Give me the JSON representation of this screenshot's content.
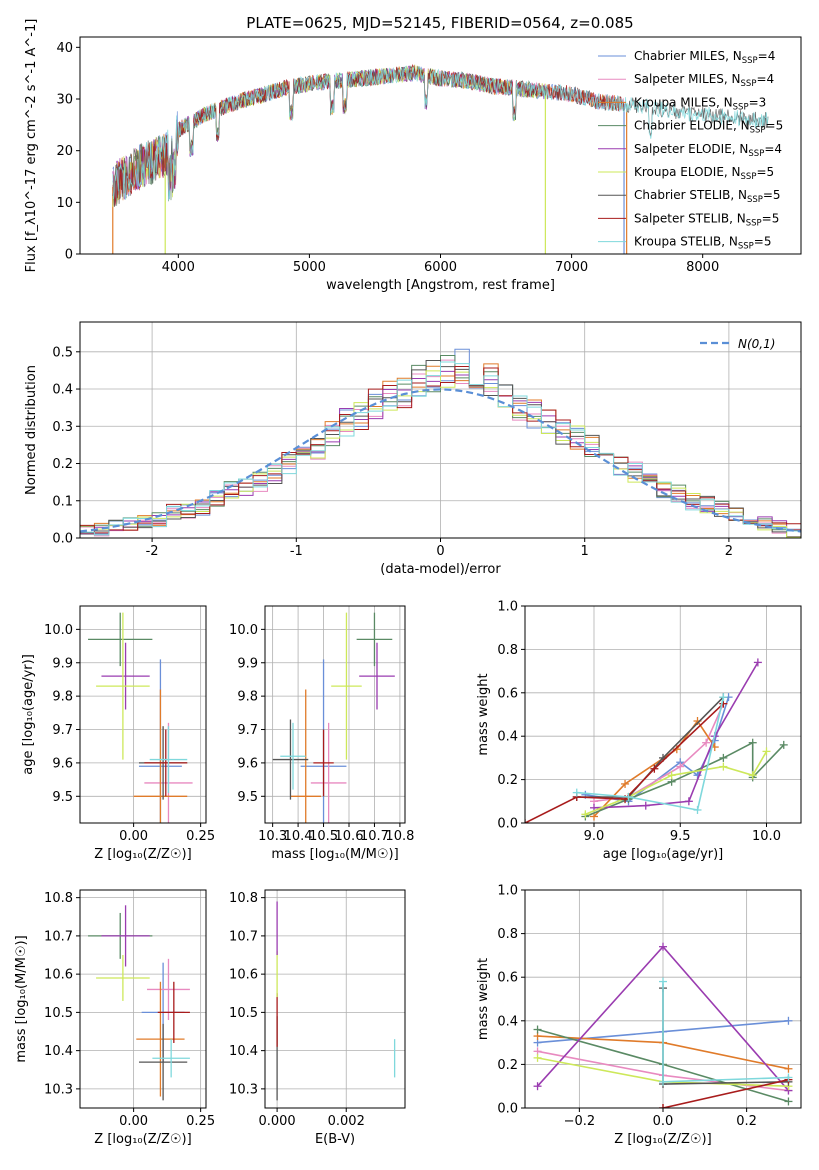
{
  "figure": {
    "title": "PLATE=0625, MJD=52145, FIBERID=0564, z=0.085"
  },
  "colors": {
    "chabrier_miles": "#6a8fd8",
    "salpeter_miles": "#e88ac0",
    "kroupa_miles": "#e07b2a",
    "chabrier_elodie": "#5a8a64",
    "salpeter_elodie": "#9a3cb0",
    "kroupa_elodie": "#cde85a",
    "chabrier_stelib": "#555555",
    "salpeter_stelib": "#a81c1c",
    "kroupa_stelib": "#7fd8dc",
    "gauss": "#5a8fd6"
  },
  "chart_data": [
    {
      "id": "spectrum",
      "type": "line",
      "xlabel": "wavelength [Angstrom, rest frame]",
      "ylabel": "Flux [f_λ10^-17 erg cm^-2 s^-1 A^-1]",
      "xlim": [
        3250,
        8750
      ],
      "ylim": [
        0,
        42
      ],
      "xticks": [
        4000,
        5000,
        6000,
        7000,
        8000
      ],
      "yticks": [
        0,
        10,
        20,
        30,
        40
      ],
      "legend_position": "top-right",
      "continuum": {
        "x": [
          3500,
          3650,
          3800,
          3950,
          4000,
          4200,
          4400,
          4600,
          4800,
          5000,
          5200,
          5400,
          5600,
          5800,
          6000,
          6200,
          6400,
          6600,
          6800,
          7000,
          7200,
          7400,
          7600,
          7800,
          8000,
          8200,
          8400
        ],
        "y": [
          13,
          16,
          18,
          20,
          24,
          27,
          29,
          30.5,
          32,
          33,
          33.5,
          34,
          34.5,
          35,
          34,
          33.5,
          32.5,
          32,
          31.5,
          31,
          29.5,
          29,
          28.5,
          27.5,
          27,
          26.5,
          26
        ]
      },
      "series": [
        {
          "name": "Chabrier MILES, N_SSP=4",
          "legend": [
            "Chabrier MILES, N",
            "SSP",
            "=4"
          ],
          "color_key": "chabrier_miles",
          "x_range": [
            3500,
            7400
          ],
          "dropout": [
            7400
          ]
        },
        {
          "name": "Salpeter MILES, N_SSP=4",
          "legend": [
            "Salpeter MILES, N",
            "SSP",
            "=4"
          ],
          "color_key": "salpeter_miles",
          "x_range": [
            3500,
            7400
          ],
          "dropout": []
        },
        {
          "name": "Kroupa MILES, N_SSP=3",
          "legend": [
            "Kroupa MILES, N",
            "SSP",
            "=3"
          ],
          "color_key": "kroupa_miles",
          "x_range": [
            3500,
            7400
          ],
          "dropout": [
            3500,
            7420
          ]
        },
        {
          "name": "Chabrier ELODIE, N_SSP=5",
          "legend": [
            "Chabrier ELODIE, N",
            "SSP",
            "=5"
          ],
          "color_key": "chabrier_elodie",
          "x_range": [
            3500,
            6800
          ],
          "dropout": []
        },
        {
          "name": "Salpeter ELODIE, N_SSP=4",
          "legend": [
            "Salpeter ELODIE, N",
            "SSP",
            "=4"
          ],
          "color_key": "salpeter_elodie",
          "x_range": [
            3500,
            6800
          ],
          "dropout": []
        },
        {
          "name": "Kroupa ELODIE, N_SSP=5",
          "legend": [
            "Kroupa ELODIE, N",
            "SSP",
            "=5"
          ],
          "color_key": "kroupa_elodie",
          "x_range": [
            3500,
            6800
          ],
          "dropout": [
            3900,
            6800
          ]
        },
        {
          "name": "Chabrier STELIB, N_SSP=5",
          "legend": [
            "Chabrier STELIB, N",
            "SSP",
            "=5"
          ],
          "color_key": "chabrier_stelib",
          "x_range": [
            3500,
            8500
          ],
          "dropout": []
        },
        {
          "name": "Salpeter STELIB, N_SSP=5",
          "legend": [
            "Salpeter STELIB, N",
            "SSP",
            "=5"
          ],
          "color_key": "salpeter_stelib",
          "x_range": [
            3500,
            7400
          ],
          "dropout": []
        },
        {
          "name": "Kroupa STELIB, N_SSP=5",
          "legend": [
            "Kroupa STELIB, N",
            "SSP",
            "=5"
          ],
          "color_key": "kroupa_stelib",
          "x_range": [
            3500,
            8500
          ],
          "dropout": []
        }
      ]
    },
    {
      "id": "residuals",
      "type": "step",
      "xlabel": "(data-model)/error",
      "ylabel": "Normed distribution",
      "xlim": [
        -2.5,
        2.5
      ],
      "ylim": [
        0,
        0.58
      ],
      "xticks": [
        -2,
        -1,
        0,
        1,
        2
      ],
      "yticks": [
        0.0,
        0.1,
        0.2,
        0.3,
        0.4,
        0.5
      ],
      "yticklabels": [
        "0.0",
        "0.1",
        "0.2",
        "0.3",
        "0.4",
        "0.5"
      ],
      "legend_label": "N(0,1)",
      "legend_position": "top-right",
      "bin_edges": [
        -2.5,
        -2.4,
        -2.3,
        -2.2,
        -2.1,
        -2.0,
        -1.9,
        -1.8,
        -1.7,
        -1.6,
        -1.5,
        -1.4,
        -1.3,
        -1.2,
        -1.1,
        -1.0,
        -0.9,
        -0.8,
        -0.7,
        -0.6,
        -0.5,
        -0.4,
        -0.3,
        -0.2,
        -0.1,
        0.0,
        0.1,
        0.2,
        0.3,
        0.4,
        0.5,
        0.6,
        0.7,
        0.8,
        0.9,
        1.0,
        1.1,
        1.2,
        1.3,
        1.4,
        1.5,
        1.6,
        1.7,
        1.8,
        1.9,
        2.0,
        2.1,
        2.2,
        2.3,
        2.4,
        2.5
      ],
      "base_hist": [
        0.02,
        0.025,
        0.03,
        0.04,
        0.04,
        0.05,
        0.07,
        0.07,
        0.08,
        0.11,
        0.13,
        0.14,
        0.15,
        0.17,
        0.2,
        0.22,
        0.24,
        0.28,
        0.31,
        0.33,
        0.36,
        0.38,
        0.39,
        0.42,
        0.44,
        0.45,
        0.46,
        0.44,
        0.43,
        0.38,
        0.35,
        0.33,
        0.31,
        0.28,
        0.27,
        0.25,
        0.22,
        0.2,
        0.18,
        0.15,
        0.13,
        0.12,
        0.1,
        0.09,
        0.08,
        0.06,
        0.05,
        0.04,
        0.03,
        0.02
      ]
    },
    {
      "id": "age_vs_Z",
      "type": "scatter",
      "xlabel": "Z [log₁₀(Z/Z☉)]",
      "ylabel": "age  [log₁₀(age/yr)]",
      "xlim": [
        -0.2,
        0.27
      ],
      "ylim": [
        9.42,
        10.07
      ],
      "xticks": [
        0.0,
        0.25
      ],
      "xticklabels": [
        "0.00",
        "0.25"
      ],
      "yticks": [
        9.5,
        9.6,
        9.7,
        9.8,
        9.9,
        10.0
      ],
      "yticklabels": [
        "9.5",
        "9.6",
        "9.7",
        "9.8",
        "9.9",
        "10.0"
      ],
      "points": [
        {
          "key": "chabrier_miles",
          "x": 0.1,
          "y": 9.59,
          "xerr": 0.08,
          "yerr": 0.32
        },
        {
          "key": "salpeter_miles",
          "x": 0.13,
          "y": 9.54,
          "xerr": 0.09,
          "yerr": 0.18
        },
        {
          "key": "kroupa_miles",
          "x": 0.1,
          "y": 9.5,
          "xerr": 0.1,
          "yerr": 0.32
        },
        {
          "key": "chabrier_elodie",
          "x": -0.05,
          "y": 9.97,
          "xerr": 0.12,
          "yerr": 0.08
        },
        {
          "key": "salpeter_elodie",
          "x": -0.03,
          "y": 9.86,
          "xerr": 0.09,
          "yerr": 0.1
        },
        {
          "key": "kroupa_elodie",
          "x": -0.04,
          "y": 9.83,
          "xerr": 0.1,
          "yerr": 0.22
        },
        {
          "key": "chabrier_stelib",
          "x": 0.11,
          "y": 9.6,
          "xerr": 0.09,
          "yerr": 0.11
        },
        {
          "key": "salpeter_stelib",
          "x": 0.12,
          "y": 9.6,
          "xerr": 0.08,
          "yerr": 0.1
        },
        {
          "key": "kroupa_stelib",
          "x": 0.13,
          "y": 9.61,
          "xerr": 0.07,
          "yerr": 0.1
        }
      ]
    },
    {
      "id": "age_vs_mass",
      "type": "scatter",
      "xlabel": "mass [log₁₀(M/M☉)]",
      "ylabel": "",
      "xlim": [
        10.27,
        10.82
      ],
      "ylim": [
        9.42,
        10.07
      ],
      "xticks": [
        10.3,
        10.4,
        10.5,
        10.6,
        10.7,
        10.8
      ],
      "xticklabels": [
        "10.3",
        "10.4",
        "10.5",
        "10.6",
        "10.7",
        "10.8"
      ],
      "yticks": [
        9.5,
        9.6,
        9.7,
        9.8,
        9.9,
        10.0
      ],
      "yticklabels": [
        "9.5",
        "9.6",
        "9.7",
        "9.8",
        "9.9",
        "10.0"
      ],
      "points": [
        {
          "key": "chabrier_miles",
          "x": 10.5,
          "y": 9.59,
          "xerr": 0.09,
          "yerr": 0.32
        },
        {
          "key": "salpeter_miles",
          "x": 10.52,
          "y": 9.54,
          "xerr": 0.07,
          "yerr": 0.18
        },
        {
          "key": "kroupa_miles",
          "x": 10.43,
          "y": 9.5,
          "xerr": 0.06,
          "yerr": 0.32
        },
        {
          "key": "chabrier_elodie",
          "x": 10.7,
          "y": 9.97,
          "xerr": 0.07,
          "yerr": 0.08
        },
        {
          "key": "salpeter_elodie",
          "x": 10.71,
          "y": 9.86,
          "xerr": 0.07,
          "yerr": 0.1
        },
        {
          "key": "kroupa_elodie",
          "x": 10.59,
          "y": 9.83,
          "xerr": 0.06,
          "yerr": 0.22
        },
        {
          "key": "chabrier_stelib",
          "x": 10.37,
          "y": 9.61,
          "xerr": 0.07,
          "yerr": 0.12
        },
        {
          "key": "salpeter_stelib",
          "x": 10.5,
          "y": 9.6,
          "xerr": 0.04,
          "yerr": 0.1
        },
        {
          "key": "kroupa_stelib",
          "x": 10.38,
          "y": 9.62,
          "xerr": 0.05,
          "yerr": 0.1
        }
      ]
    },
    {
      "id": "weight_vs_age",
      "type": "line",
      "xlabel": "age  [log₁₀(age/yr)]",
      "ylabel": "mass weight",
      "xlim": [
        8.6,
        10.2
      ],
      "ylim": [
        0,
        1
      ],
      "xticks": [
        9.0,
        9.5,
        10.0
      ],
      "xticklabels": [
        "9.0",
        "9.5",
        "10.0"
      ],
      "yticks": [
        0.0,
        0.2,
        0.4,
        0.6,
        0.8,
        1.0
      ],
      "yticklabels": [
        "0.0",
        "0.2",
        "0.4",
        "0.6",
        "0.8",
        "1.0"
      ],
      "series": [
        {
          "key": "chabrier_miles",
          "x": [
            8.95,
            9.2,
            9.5,
            9.6,
            9.7,
            9.78
          ],
          "y": [
            0.13,
            0.1,
            0.28,
            0.22,
            0.38,
            0.58
          ]
        },
        {
          "key": "salpeter_miles",
          "x": [
            9.0,
            9.2,
            9.5,
            9.65,
            9.75
          ],
          "y": [
            0.1,
            0.12,
            0.26,
            0.37,
            0.55
          ]
        },
        {
          "key": "kroupa_miles",
          "x": [
            9.0,
            9.18,
            9.48,
            9.6,
            9.7
          ],
          "y": [
            0.03,
            0.18,
            0.34,
            0.47,
            0.35
          ]
        },
        {
          "key": "chabrier_elodie",
          "x": [
            8.95,
            9.2,
            9.45,
            9.75,
            9.92,
            9.92,
            10.1
          ],
          "y": [
            0.03,
            0.11,
            0.19,
            0.3,
            0.37,
            0.21,
            0.36
          ]
        },
        {
          "key": "salpeter_elodie",
          "x": [
            9.0,
            9.3,
            9.55,
            9.7,
            9.95
          ],
          "y": [
            0.07,
            0.08,
            0.1,
            0.4,
            0.74
          ]
        },
        {
          "key": "kroupa_elodie",
          "x": [
            8.95,
            9.2,
            9.45,
            9.75,
            9.92,
            10.0
          ],
          "y": [
            0.04,
            0.12,
            0.22,
            0.26,
            0.22,
            0.33
          ]
        },
        {
          "key": "chabrier_stelib",
          "x": [
            8.9,
            9.2,
            9.4,
            9.75
          ],
          "y": [
            0.12,
            0.12,
            0.3,
            0.58
          ]
        },
        {
          "key": "salpeter_stelib",
          "x": [
            8.6,
            8.9,
            9.18,
            9.35,
            9.75
          ],
          "y": [
            0.0,
            0.12,
            0.11,
            0.25,
            0.55
          ]
        },
        {
          "key": "kroupa_stelib",
          "x": [
            8.9,
            9.2,
            9.6,
            9.75
          ],
          "y": [
            0.14,
            0.12,
            0.06,
            0.58
          ]
        }
      ]
    },
    {
      "id": "mass_vs_Z",
      "type": "scatter",
      "xlabel": "Z [log₁₀(Z/Z☉)]",
      "ylabel": "mass [log₁₀(M/M☉)]",
      "xlim": [
        -0.2,
        0.27
      ],
      "ylim": [
        10.25,
        10.82
      ],
      "xticks": [
        0.0,
        0.25
      ],
      "xticklabels": [
        "0.00",
        "0.25"
      ],
      "yticks": [
        10.3,
        10.4,
        10.5,
        10.6,
        10.7,
        10.8
      ],
      "yticklabels": [
        "10.3",
        "10.4",
        "10.5",
        "10.6",
        "10.7",
        "10.8"
      ],
      "points": [
        {
          "key": "chabrier_miles",
          "x": 0.11,
          "y": 10.5,
          "xerr": 0.08,
          "yerr": 0.13
        },
        {
          "key": "salpeter_miles",
          "x": 0.13,
          "y": 10.56,
          "xerr": 0.08,
          "yerr": 0.08
        },
        {
          "key": "kroupa_miles",
          "x": 0.1,
          "y": 10.43,
          "xerr": 0.09,
          "yerr": 0.15
        },
        {
          "key": "chabrier_elodie",
          "x": -0.05,
          "y": 10.7,
          "xerr": 0.12,
          "yerr": 0.06
        },
        {
          "key": "salpeter_elodie",
          "x": -0.03,
          "y": 10.7,
          "xerr": 0.09,
          "yerr": 0.08
        },
        {
          "key": "kroupa_elodie",
          "x": -0.04,
          "y": 10.59,
          "xerr": 0.1,
          "yerr": 0.06
        },
        {
          "key": "chabrier_stelib",
          "x": 0.11,
          "y": 10.37,
          "xerr": 0.09,
          "yerr": 0.1
        },
        {
          "key": "salpeter_stelib",
          "x": 0.15,
          "y": 10.5,
          "xerr": 0.06,
          "yerr": 0.08
        },
        {
          "key": "kroupa_stelib",
          "x": 0.14,
          "y": 10.38,
          "xerr": 0.07,
          "yerr": 0.05
        }
      ]
    },
    {
      "id": "mass_vs_ebv",
      "type": "scatter",
      "xlabel": "E(B-V)",
      "ylabel": "",
      "xlim": [
        -0.00035,
        0.0037
      ],
      "ylim": [
        10.25,
        10.82
      ],
      "xticks": [
        0.0,
        0.002
      ],
      "xticklabels": [
        "0.000",
        "0.002"
      ],
      "yticks": [
        10.3,
        10.4,
        10.5,
        10.6,
        10.7,
        10.8
      ],
      "yticklabels": [
        "10.3",
        "10.4",
        "10.5",
        "10.6",
        "10.7",
        "10.8"
      ],
      "points": [
        {
          "key": "chabrier_stelib",
          "x": 0.0,
          "y": 10.38,
          "xerr": 0.0,
          "yerr": 0.11
        },
        {
          "key": "salpeter_stelib",
          "x": 0.0,
          "y": 10.48,
          "xerr": 0.0,
          "yerr": 0.07
        },
        {
          "key": "kroupa_elodie",
          "x": 0.0,
          "y": 10.6,
          "xerr": 0.0,
          "yerr": 0.06
        },
        {
          "key": "salpeter_elodie",
          "x": 0.0,
          "y": 10.72,
          "xerr": 0.0,
          "yerr": 0.07
        },
        {
          "key": "kroupa_stelib",
          "x": 0.0034,
          "y": 10.38,
          "xerr": 0.0,
          "yerr": 0.05
        }
      ]
    },
    {
      "id": "weight_vs_Z",
      "type": "line",
      "xlabel": "Z [log₁₀(Z/Z☉)]",
      "ylabel": "mass weight",
      "xlim": [
        -0.33,
        0.33
      ],
      "ylim": [
        0,
        1
      ],
      "xticks": [
        -0.2,
        0.0,
        0.2
      ],
      "xticklabels": [
        "−0.2",
        "0.0",
        "0.2"
      ],
      "yticks": [
        0.0,
        0.2,
        0.4,
        0.6,
        0.8,
        1.0
      ],
      "yticklabels": [
        "0.0",
        "0.2",
        "0.4",
        "0.6",
        "0.8",
        "1.0"
      ],
      "series": [
        {
          "key": "chabrier_miles",
          "x": [
            -0.3,
            0.0,
            0.3
          ],
          "y": [
            0.3,
            0.35,
            0.4
          ]
        },
        {
          "key": "salpeter_miles",
          "x": [
            -0.3,
            0.0,
            0.3
          ],
          "y": [
            0.26,
            0.15,
            0.08
          ]
        },
        {
          "key": "kroupa_miles",
          "x": [
            -0.3,
            0.0,
            0.3
          ],
          "y": [
            0.33,
            0.3,
            0.18
          ]
        },
        {
          "key": "chabrier_elodie",
          "x": [
            -0.3,
            0.0,
            0.3
          ],
          "y": [
            0.36,
            0.2,
            0.03
          ]
        },
        {
          "key": "salpeter_elodie",
          "x": [
            -0.3,
            0.0,
            0.3
          ],
          "y": [
            0.1,
            0.74,
            0.08
          ]
        },
        {
          "key": "kroupa_elodie",
          "x": [
            -0.3,
            0.0,
            0.3
          ],
          "y": [
            0.23,
            0.12,
            0.1
          ]
        },
        {
          "key": "chabrier_stelib",
          "x": [
            0.0,
            0.0,
            0.3
          ],
          "y": [
            0.55,
            0.11,
            0.12
          ]
        },
        {
          "key": "salpeter_stelib",
          "x": [
            0.0,
            0.0,
            0.3
          ],
          "y": [
            0.0,
            0.0,
            0.13
          ]
        },
        {
          "key": "kroupa_stelib",
          "x": [
            0.0,
            0.0,
            0.3
          ],
          "y": [
            0.58,
            0.12,
            0.14
          ]
        }
      ]
    }
  ]
}
